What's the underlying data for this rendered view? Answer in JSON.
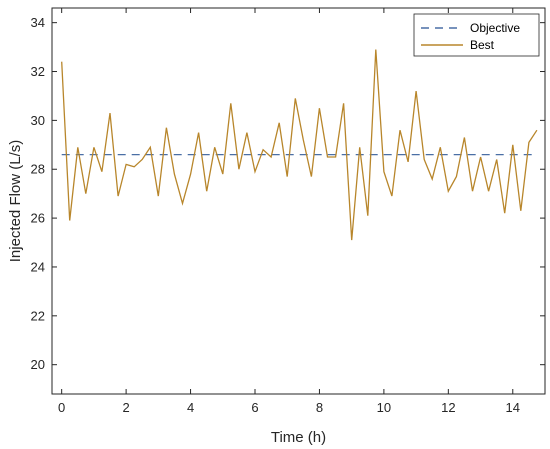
{
  "chart_data": {
    "type": "line",
    "title": "",
    "xlabel": "Time (h)",
    "ylabel": "Injected Flow (L/s)",
    "xlim": [
      -0.3,
      15.0
    ],
    "ylim": [
      18.8,
      34.6
    ],
    "xticks": [
      0,
      2,
      4,
      6,
      8,
      10,
      12,
      14
    ],
    "yticks": [
      20,
      22,
      24,
      26,
      28,
      30,
      32,
      34
    ],
    "grid": false,
    "legend_position": "top-right",
    "series": [
      {
        "name": "Objective",
        "style": "dashed",
        "color": "#4a6fa5",
        "x": [
          0,
          14.75
        ],
        "y": [
          28.6,
          28.6
        ]
      },
      {
        "name": "Best",
        "style": "solid",
        "color": "#b8862b",
        "x": [
          0,
          0.25,
          0.5,
          0.75,
          1,
          1.25,
          1.5,
          1.75,
          2,
          2.25,
          2.5,
          2.75,
          3,
          3.25,
          3.5,
          3.75,
          4,
          4.25,
          4.5,
          4.75,
          5,
          5.25,
          5.5,
          5.75,
          6,
          6.25,
          6.5,
          6.75,
          7,
          7.25,
          7.5,
          7.75,
          8,
          8.25,
          8.5,
          8.75,
          9,
          9.25,
          9.5,
          9.75,
          10,
          10.25,
          10.5,
          10.75,
          11,
          11.25,
          11.5,
          11.75,
          12,
          12.25,
          12.5,
          12.75,
          13,
          13.25,
          13.5,
          13.75,
          14,
          14.25,
          14.5,
          14.75
        ],
        "y": [
          32.4,
          25.9,
          28.9,
          27.0,
          28.9,
          27.9,
          30.3,
          26.9,
          28.2,
          28.1,
          28.4,
          28.9,
          26.9,
          29.7,
          27.8,
          26.6,
          27.8,
          29.5,
          27.1,
          28.9,
          27.8,
          30.7,
          28.0,
          29.5,
          27.9,
          28.8,
          28.5,
          29.9,
          27.7,
          30.9,
          29.2,
          27.7,
          30.5,
          28.5,
          28.5,
          30.7,
          25.1,
          28.9,
          26.1,
          32.9,
          27.9,
          26.9,
          29.6,
          28.3,
          31.2,
          28.4,
          27.6,
          28.9,
          27.1,
          27.7,
          29.3,
          27.1,
          28.5,
          27.1,
          28.4,
          26.2,
          29.0,
          26.3,
          29.1,
          29.6
        ]
      }
    ]
  }
}
